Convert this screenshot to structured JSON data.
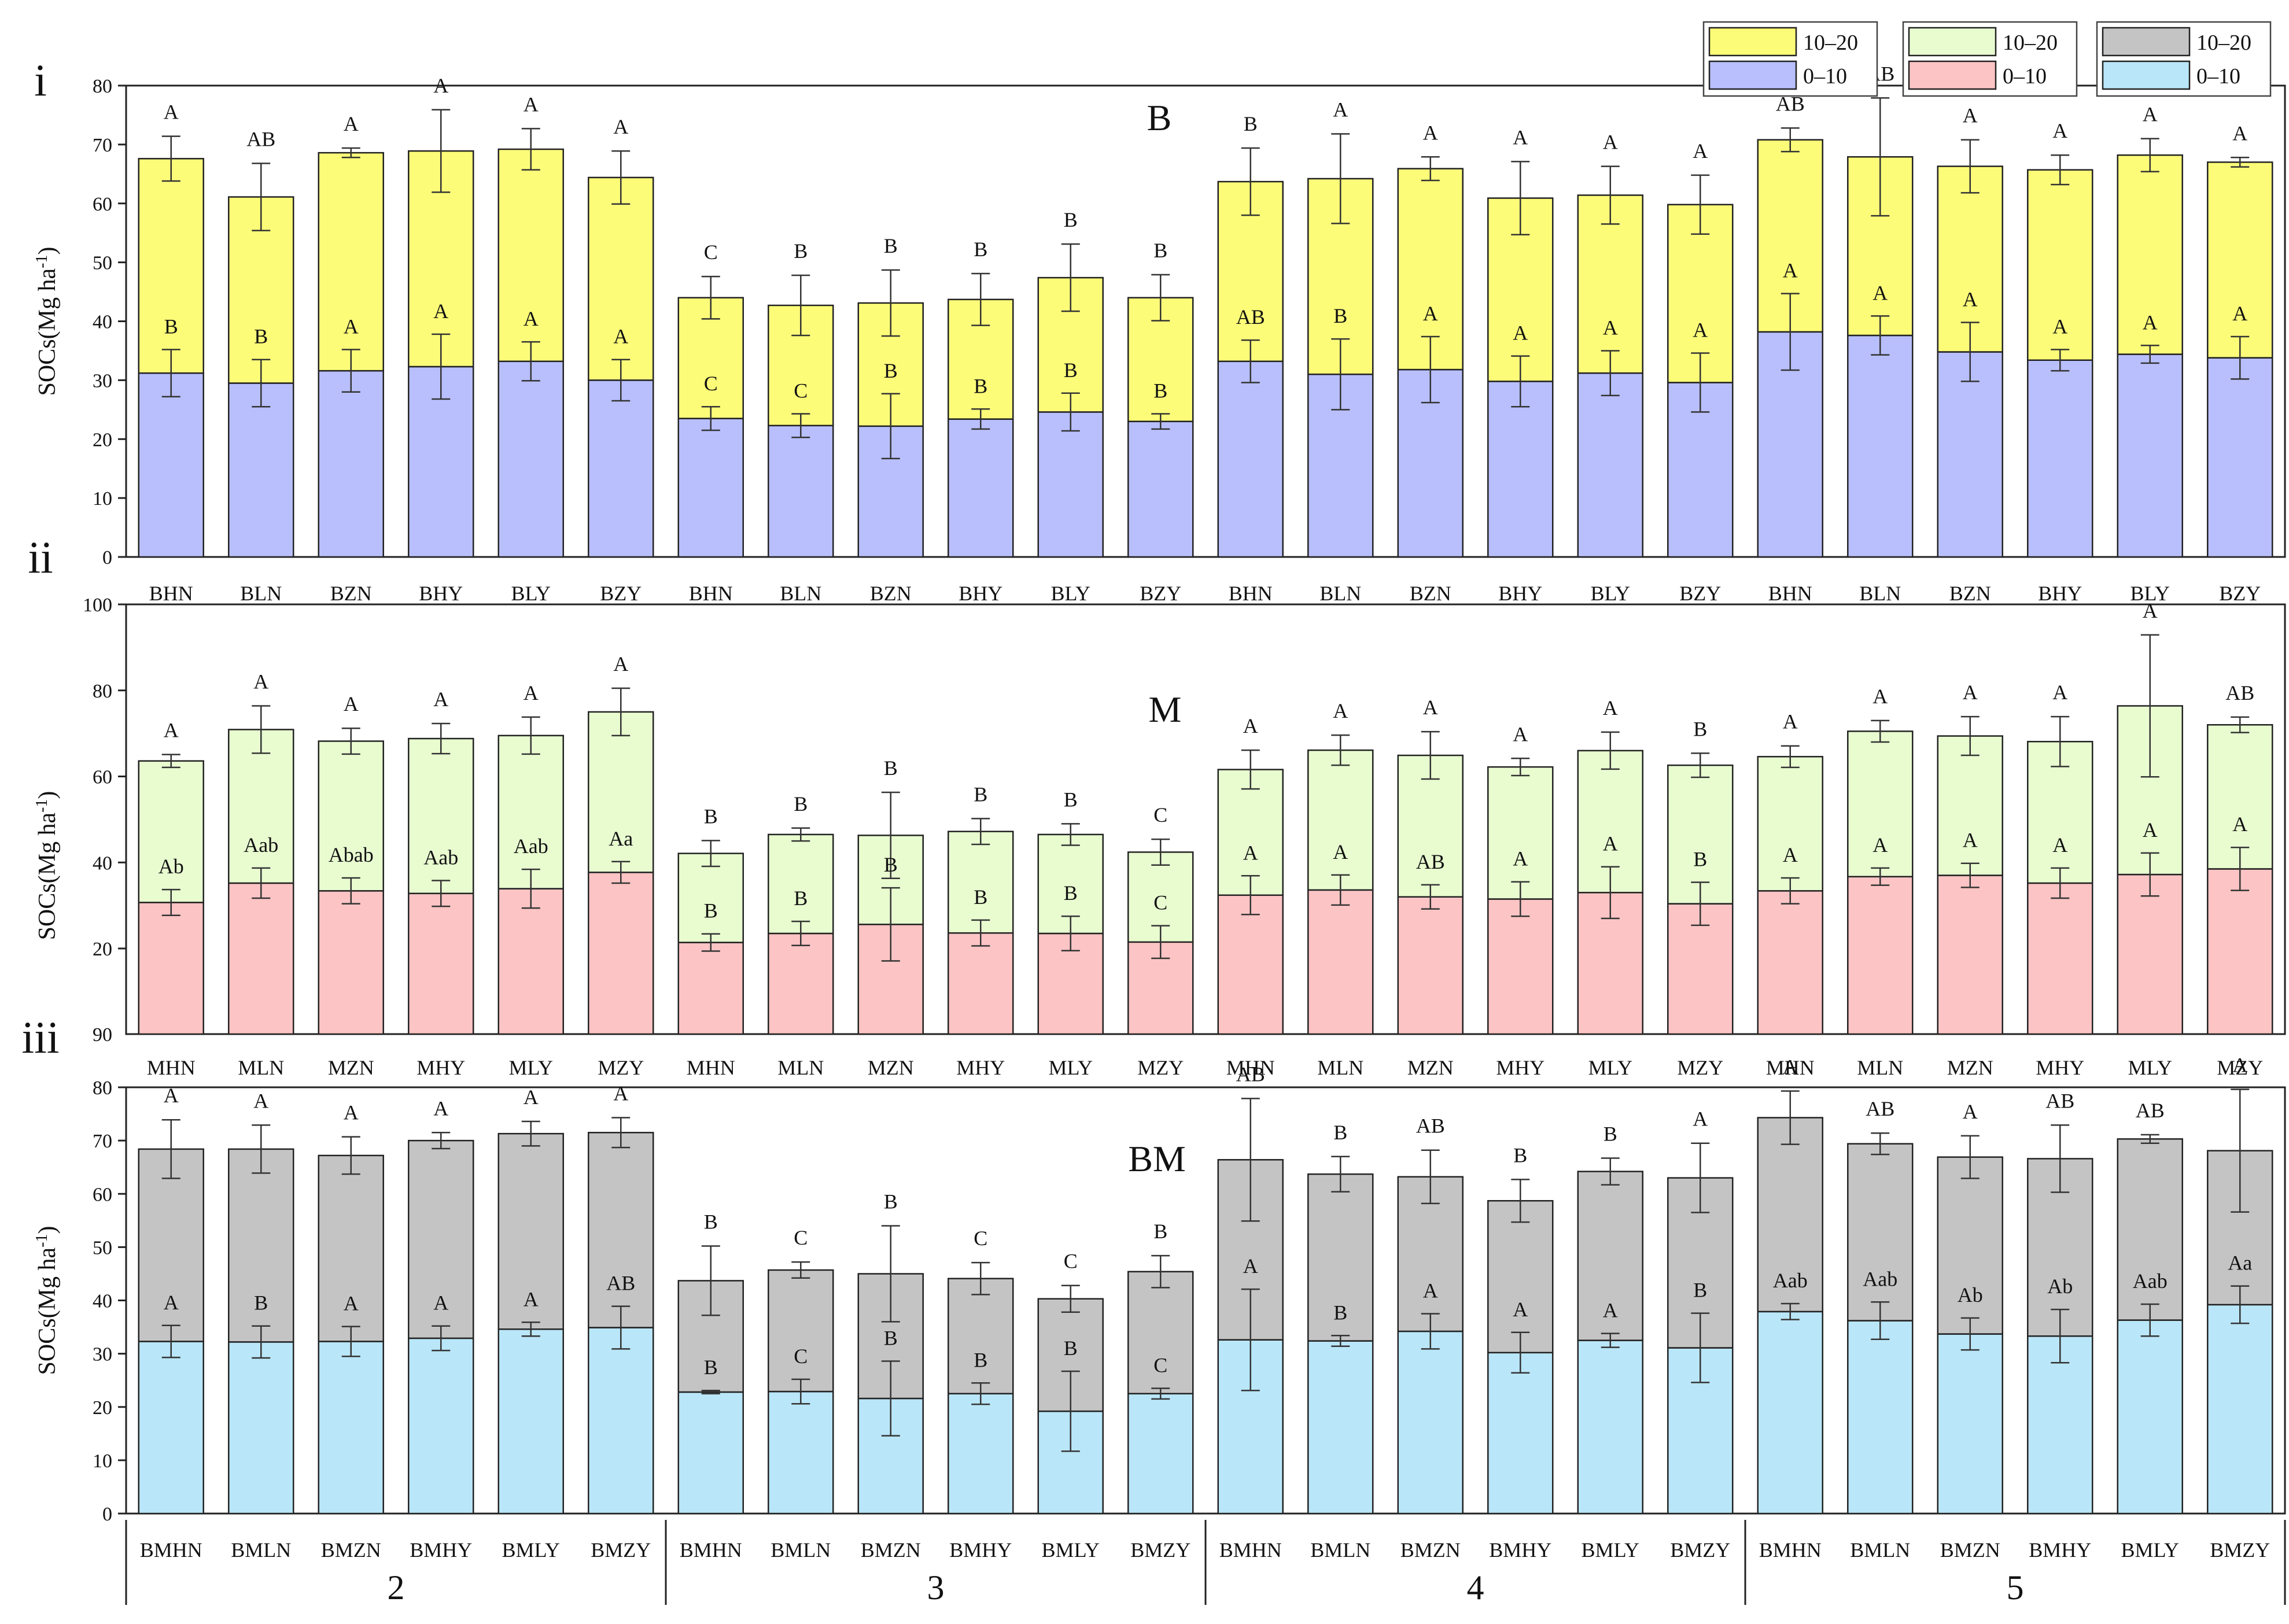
{
  "chart_data": [
    {
      "panel": "i",
      "type": "bar",
      "stacked": true,
      "label": "B",
      "ylabel": "SOCs(Mg ha",
      "ylabel_sup": "-1",
      "ylabel_close": ")",
      "ylim": [
        0,
        80
      ],
      "yticks": [
        "0",
        "10",
        "20",
        "30",
        "40",
        "50",
        "60",
        "70",
        "80"
      ],
      "categories": [
        "BHN",
        "BLN",
        "BZN",
        "BHY",
        "BLY",
        "BZY",
        "BHN",
        "BLN",
        "BZN",
        "BHY",
        "BLY",
        "BZY",
        "BHN",
        "BLN",
        "BZN",
        "BHY",
        "BLY",
        "BZY",
        "BHN",
        "BLN",
        "BZN",
        "BHY",
        "BLY",
        "BZY"
      ],
      "series": [
        {
          "name": "0–10",
          "color": "#b8bffc",
          "values": [
            31.2,
            29.5,
            31.6,
            32.3,
            33.2,
            30.0,
            23.5,
            22.3,
            22.2,
            23.4,
            24.6,
            23.0,
            33.2,
            31.0,
            31.8,
            29.8,
            31.2,
            29.6,
            38.2,
            37.6,
            34.8,
            33.4,
            34.4,
            33.8
          ],
          "errors": [
            4.0,
            4.0,
            3.6,
            5.5,
            3.3,
            3.5,
            2.0,
            2.0,
            5.5,
            1.7,
            3.2,
            1.3,
            3.6,
            6.0,
            5.6,
            4.3,
            3.8,
            5.0,
            6.5,
            3.3,
            5.0,
            1.8,
            1.5,
            3.6
          ],
          "letters": [
            "B",
            "B",
            "A",
            "A",
            "A",
            "A",
            "C",
            "C",
            "B",
            "B",
            "B",
            "B",
            "AB",
            "B",
            "A",
            "A",
            "A",
            "A",
            "A",
            "A",
            "A",
            "A",
            "A",
            "A"
          ]
        },
        {
          "name": "10–20",
          "color": "#fcfc79",
          "values": [
            36.4,
            31.6,
            37.0,
            36.6,
            36.0,
            34.4,
            20.5,
            20.4,
            20.9,
            20.3,
            22.8,
            21.0,
            30.5,
            33.2,
            34.1,
            31.1,
            30.2,
            30.2,
            32.6,
            30.3,
            31.5,
            32.3,
            33.8,
            33.2
          ],
          "errors": [
            3.8,
            5.7,
            0.8,
            7.0,
            3.5,
            4.5,
            3.6,
            5.1,
            5.6,
            4.4,
            5.7,
            3.9,
            5.7,
            7.6,
            2.0,
            6.2,
            4.9,
            5.0,
            2.0,
            10.0,
            4.5,
            2.5,
            2.8,
            0.8
          ],
          "letters": [
            "A",
            "AB",
            "A",
            "A",
            "A",
            "A",
            "C",
            "B",
            "B",
            "B",
            "B",
            "B",
            "B",
            "A",
            "A",
            "A",
            "A",
            "A",
            "AB",
            "AB",
            "A",
            "A",
            "A",
            "A"
          ]
        }
      ]
    },
    {
      "panel": "ii",
      "type": "bar",
      "stacked": true,
      "label": "M",
      "ylabel": "SOCs(Mg ha",
      "ylabel_sup": "-1",
      "ylabel_close": ")",
      "ylim": [
        0,
        100
      ],
      "yticks": [
        "20",
        "40",
        "60",
        "80",
        "100"
      ],
      "bottom_tick_label": "90",
      "categories": [
        "MHN",
        "MLN",
        "MZN",
        "MHY",
        "MLY",
        "MZY",
        "MHN",
        "MLN",
        "MZN",
        "MHY",
        "MLY",
        "MZY",
        "MHN",
        "MLN",
        "MZN",
        "MHY",
        "MLY",
        "MZY",
        "MHN",
        "MLN",
        "MZN",
        "MHY",
        "MLY",
        "MZY"
      ],
      "series": [
        {
          "name": "0–10",
          "color": "#fcc4c4",
          "values": [
            30.7,
            35.2,
            33.4,
            32.8,
            33.9,
            37.7,
            21.4,
            23.5,
            25.6,
            23.6,
            23.5,
            21.5,
            32.4,
            33.6,
            32.0,
            31.5,
            33.0,
            30.4,
            33.4,
            36.7,
            37.0,
            35.2,
            37.2,
            38.5
          ],
          "errors": [
            3.0,
            3.5,
            3.0,
            3.0,
            4.5,
            2.5,
            2.0,
            2.8,
            8.5,
            3.0,
            4.0,
            3.8,
            4.5,
            3.5,
            2.8,
            4.0,
            6.0,
            5.0,
            3.0,
            2.0,
            2.8,
            3.5,
            5.0,
            5.0
          ],
          "letters": [
            "Ab",
            "Aab",
            "Abab",
            "Aab",
            "Aab",
            "Aa",
            "B",
            "B",
            "B",
            "B",
            "B",
            "C",
            "A",
            "A",
            "AB",
            "A",
            "A",
            "B",
            "A",
            "A",
            "A",
            "A",
            "A",
            "A"
          ]
        },
        {
          "name": "10–20",
          "color": "#e8fcd0",
          "values": [
            32.9,
            35.7,
            34.8,
            36.0,
            35.6,
            37.3,
            20.7,
            23.0,
            20.7,
            23.6,
            23.0,
            20.9,
            29.2,
            32.5,
            32.9,
            30.7,
            33.0,
            32.2,
            31.2,
            33.8,
            32.4,
            32.9,
            39.2,
            33.5
          ],
          "errors": [
            1.5,
            5.5,
            3.0,
            3.5,
            4.3,
            5.5,
            3.0,
            1.5,
            10.0,
            3.0,
            2.5,
            3.0,
            4.5,
            3.5,
            5.5,
            2.0,
            4.3,
            2.8,
            2.5,
            2.5,
            4.5,
            5.8,
            16.5,
            1.8
          ],
          "letters": [
            "A",
            "A",
            "A",
            "A",
            "A",
            "A",
            "B",
            "B",
            "B",
            "B",
            "B",
            "C",
            "A",
            "A",
            "A",
            "A",
            "A",
            "B",
            "A",
            "A",
            "A",
            "A",
            "A",
            "AB"
          ]
        }
      ]
    },
    {
      "panel": "iii",
      "type": "bar",
      "stacked": true,
      "label": "BM",
      "ylabel": "SOCs(Mg ha",
      "ylabel_sup": "-1",
      "ylabel_close": ")",
      "ylim": [
        0,
        80
      ],
      "yticks": [
        "0",
        "10",
        "20",
        "30",
        "40",
        "50",
        "60",
        "70",
        "80"
      ],
      "categories": [
        "BMHN",
        "BMLN",
        "BMZN",
        "BMHY",
        "BMLY",
        "BMZY",
        "BMHN",
        "BMLN",
        "BMZN",
        "BMHY",
        "BMLY",
        "BMZY",
        "BMHN",
        "BMLN",
        "BMZN",
        "BMHY",
        "BMLY",
        "BMZY",
        "BMHN",
        "BMLN",
        "BMZN",
        "BMHY",
        "BMLY",
        "BMZY"
      ],
      "series": [
        {
          "name": "0–10",
          "color": "#b9e6f8",
          "values": [
            32.3,
            32.2,
            32.3,
            32.9,
            34.6,
            34.9,
            22.8,
            22.9,
            21.6,
            22.5,
            19.2,
            22.5,
            32.6,
            32.4,
            34.2,
            30.2,
            32.5,
            31.1,
            37.9,
            36.2,
            33.7,
            33.3,
            36.3,
            39.2
          ],
          "errors": [
            3.0,
            3.0,
            2.8,
            2.3,
            1.3,
            4.0,
            0.3,
            2.3,
            7.0,
            2.0,
            7.5,
            1.0,
            9.5,
            1.0,
            3.3,
            3.8,
            1.3,
            6.5,
            1.5,
            3.5,
            3.0,
            5.0,
            3.0,
            3.5
          ],
          "letters": [
            "A",
            "B",
            "A",
            "A",
            "A",
            "AB",
            "B",
            "C",
            "B",
            "B",
            "B",
            "C",
            "A",
            "B",
            "A",
            "A",
            "A",
            "B",
            "Aab",
            "Aab",
            "Ab",
            "Ab",
            "Aab",
            "Aa"
          ]
        },
        {
          "name": "10–20",
          "color": "#c4c4c4",
          "values": [
            36.1,
            36.2,
            34.9,
            37.1,
            36.7,
            36.6,
            20.9,
            22.8,
            23.4,
            21.6,
            21.1,
            22.9,
            33.8,
            31.3,
            29.0,
            28.5,
            31.7,
            31.9,
            36.4,
            33.2,
            33.2,
            33.3,
            34.0,
            28.9
          ],
          "errors": [
            5.5,
            4.5,
            3.5,
            1.5,
            2.3,
            2.8,
            6.5,
            1.5,
            9.0,
            3.0,
            2.5,
            3.0,
            11.5,
            3.3,
            5.0,
            4.0,
            2.5,
            6.5,
            5.0,
            2.0,
            4.0,
            6.3,
            0.8,
            11.5
          ],
          "letters": [
            "A",
            "A",
            "A",
            "A",
            "A",
            "A",
            "B",
            "C",
            "B",
            "C",
            "C",
            "B",
            "AB",
            "B",
            "AB",
            "B",
            "B",
            "A",
            "A",
            "AB",
            "A",
            "AB",
            "AB",
            "A"
          ]
        }
      ]
    }
  ],
  "panel_labels": {
    "i": "i",
    "ii": "ii",
    "iii": "iii"
  },
  "group_labels": [
    "2",
    "3",
    "4",
    "5"
  ],
  "legend": [
    {
      "name": "10–20",
      "color": "#fcfc79"
    },
    {
      "name": "0–10",
      "color": "#b8bffc"
    },
    {
      "name": "10–20",
      "color": "#e8fcd0"
    },
    {
      "name": "0–10",
      "color": "#fcc4c4"
    },
    {
      "name": "10–20",
      "color": "#c4c4c4"
    },
    {
      "name": "0–10",
      "color": "#b9e6f8"
    }
  ]
}
